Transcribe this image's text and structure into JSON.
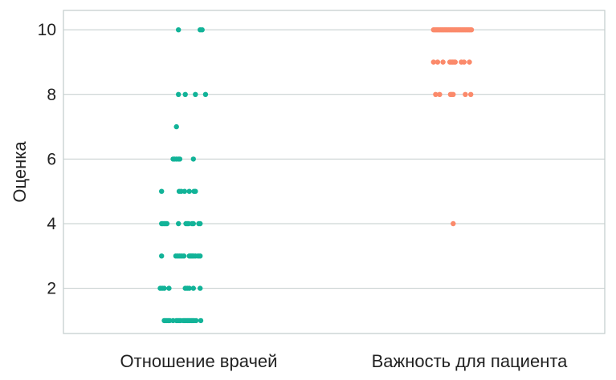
{
  "chart_data": {
    "type": "scatter",
    "title": "",
    "xlabel": "",
    "ylabel": "Оценка",
    "ylim": [
      0.6,
      10.6
    ],
    "yticks": [
      2,
      4,
      6,
      8,
      10
    ],
    "ytick_labels": [
      "2",
      "4",
      "6",
      "8",
      "10"
    ],
    "categories": [
      "Отношение врачей",
      "Важность для пациента"
    ],
    "grid": "horizontal",
    "legend": "none",
    "series": [
      {
        "category": "Отношение врачей",
        "color": "#12b398",
        "points": [
          {
            "y": 10,
            "jitter": -0.3
          },
          {
            "y": 10,
            "jitter": 0.02
          },
          {
            "y": 10,
            "jitter": 0.05
          },
          {
            "y": 8,
            "jitter": -0.3
          },
          {
            "y": 8,
            "jitter": -0.2
          },
          {
            "y": 8,
            "jitter": -0.05
          },
          {
            "y": 8,
            "jitter": 0.1
          },
          {
            "y": 7,
            "jitter": -0.33
          },
          {
            "y": 6,
            "jitter": -0.38
          },
          {
            "y": 6,
            "jitter": -0.36
          },
          {
            "y": 6,
            "jitter": -0.33
          },
          {
            "y": 6,
            "jitter": -0.3
          },
          {
            "y": 6,
            "jitter": -0.28
          },
          {
            "y": 6,
            "jitter": -0.08
          },
          {
            "y": 5,
            "jitter": -0.55
          },
          {
            "y": 5,
            "jitter": -0.29
          },
          {
            "y": 5,
            "jitter": -0.26
          },
          {
            "y": 5,
            "jitter": -0.21
          },
          {
            "y": 5,
            "jitter": -0.14
          },
          {
            "y": 5,
            "jitter": -0.07
          },
          {
            "y": 5,
            "jitter": -0.05
          },
          {
            "y": 4,
            "jitter": -0.55
          },
          {
            "y": 4,
            "jitter": -0.53
          },
          {
            "y": 4,
            "jitter": -0.51
          },
          {
            "y": 4,
            "jitter": -0.49
          },
          {
            "y": 4,
            "jitter": -0.47
          },
          {
            "y": 4,
            "jitter": -0.3
          },
          {
            "y": 4,
            "jitter": -0.19
          },
          {
            "y": 4,
            "jitter": -0.17
          },
          {
            "y": 4,
            "jitter": -0.15
          },
          {
            "y": 4,
            "jitter": -0.1
          },
          {
            "y": 4,
            "jitter": -0.08
          },
          {
            "y": 4,
            "jitter": 0.0
          },
          {
            "y": 4,
            "jitter": 0.02
          },
          {
            "y": 3,
            "jitter": -0.55
          },
          {
            "y": 3,
            "jitter": -0.34
          },
          {
            "y": 3,
            "jitter": -0.31
          },
          {
            "y": 3,
            "jitter": -0.28
          },
          {
            "y": 3,
            "jitter": -0.25
          },
          {
            "y": 3,
            "jitter": -0.22
          },
          {
            "y": 3,
            "jitter": -0.14
          },
          {
            "y": 3,
            "jitter": -0.12
          },
          {
            "y": 3,
            "jitter": -0.1
          },
          {
            "y": 3,
            "jitter": -0.08
          },
          {
            "y": 3,
            "jitter": -0.05
          },
          {
            "y": 3,
            "jitter": -0.01
          },
          {
            "y": 3,
            "jitter": 0.02
          },
          {
            "y": 2,
            "jitter": -0.57
          },
          {
            "y": 2,
            "jitter": -0.54
          },
          {
            "y": 2,
            "jitter": -0.51
          },
          {
            "y": 2,
            "jitter": -0.44
          },
          {
            "y": 2,
            "jitter": -0.2
          },
          {
            "y": 2,
            "jitter": -0.17
          },
          {
            "y": 2,
            "jitter": -0.14
          },
          {
            "y": 2,
            "jitter": -0.08
          },
          {
            "y": 2,
            "jitter": 0.02
          },
          {
            "y": 1,
            "jitter": -0.51
          },
          {
            "y": 1,
            "jitter": -0.49
          },
          {
            "y": 1,
            "jitter": -0.47
          },
          {
            "y": 1,
            "jitter": -0.45
          },
          {
            "y": 1,
            "jitter": -0.43
          },
          {
            "y": 1,
            "jitter": -0.38
          },
          {
            "y": 1,
            "jitter": -0.33
          },
          {
            "y": 1,
            "jitter": -0.31
          },
          {
            "y": 1,
            "jitter": -0.29
          },
          {
            "y": 1,
            "jitter": -0.27
          },
          {
            "y": 1,
            "jitter": -0.23
          },
          {
            "y": 1,
            "jitter": -0.21
          },
          {
            "y": 1,
            "jitter": -0.19
          },
          {
            "y": 1,
            "jitter": -0.17
          },
          {
            "y": 1,
            "jitter": -0.15
          },
          {
            "y": 1,
            "jitter": -0.13
          },
          {
            "y": 1,
            "jitter": -0.11
          },
          {
            "y": 1,
            "jitter": -0.09
          },
          {
            "y": 1,
            "jitter": -0.07
          },
          {
            "y": 1,
            "jitter": -0.04
          },
          {
            "y": 1,
            "jitter": 0.03
          }
        ]
      },
      {
        "category": "Важность для пациента",
        "color": "#fb8a6b",
        "points": [
          {
            "y": 10,
            "jitter": -0.53
          },
          {
            "y": 10,
            "jitter": -0.51
          },
          {
            "y": 10,
            "jitter": -0.49
          },
          {
            "y": 10,
            "jitter": -0.47
          },
          {
            "y": 10,
            "jitter": -0.45
          },
          {
            "y": 10,
            "jitter": -0.43
          },
          {
            "y": 10,
            "jitter": -0.41
          },
          {
            "y": 10,
            "jitter": -0.39
          },
          {
            "y": 10,
            "jitter": -0.37
          },
          {
            "y": 10,
            "jitter": -0.35
          },
          {
            "y": 10,
            "jitter": -0.33
          },
          {
            "y": 10,
            "jitter": -0.31
          },
          {
            "y": 10,
            "jitter": -0.29
          },
          {
            "y": 10,
            "jitter": -0.27
          },
          {
            "y": 10,
            "jitter": -0.25
          },
          {
            "y": 10,
            "jitter": -0.23
          },
          {
            "y": 10,
            "jitter": -0.21
          },
          {
            "y": 10,
            "jitter": -0.19
          },
          {
            "y": 10,
            "jitter": -0.17
          },
          {
            "y": 10,
            "jitter": -0.15
          },
          {
            "y": 10,
            "jitter": -0.13
          },
          {
            "y": 10,
            "jitter": -0.11
          },
          {
            "y": 10,
            "jitter": -0.09
          },
          {
            "y": 10,
            "jitter": -0.07
          },
          {
            "y": 10,
            "jitter": -0.05
          },
          {
            "y": 10,
            "jitter": -0.03
          },
          {
            "y": 10,
            "jitter": -0.01
          },
          {
            "y": 10,
            "jitter": 0.01
          },
          {
            "y": 10,
            "jitter": 0.03
          },
          {
            "y": 9,
            "jitter": -0.53
          },
          {
            "y": 9,
            "jitter": -0.47
          },
          {
            "y": 9,
            "jitter": -0.39
          },
          {
            "y": 9,
            "jitter": -0.29
          },
          {
            "y": 9,
            "jitter": -0.27
          },
          {
            "y": 9,
            "jitter": -0.25
          },
          {
            "y": 9,
            "jitter": -0.23
          },
          {
            "y": 9,
            "jitter": -0.21
          },
          {
            "y": 9,
            "jitter": -0.12
          },
          {
            "y": 9,
            "jitter": -0.08
          },
          {
            "y": 9,
            "jitter": 0.0
          },
          {
            "y": 8,
            "jitter": -0.5
          },
          {
            "y": 8,
            "jitter": -0.44
          },
          {
            "y": 8,
            "jitter": -0.28
          },
          {
            "y": 8,
            "jitter": -0.26
          },
          {
            "y": 8,
            "jitter": -0.24
          },
          {
            "y": 8,
            "jitter": -0.06
          },
          {
            "y": 8,
            "jitter": 0.02
          },
          {
            "y": 4,
            "jitter": -0.24
          }
        ]
      }
    ]
  }
}
